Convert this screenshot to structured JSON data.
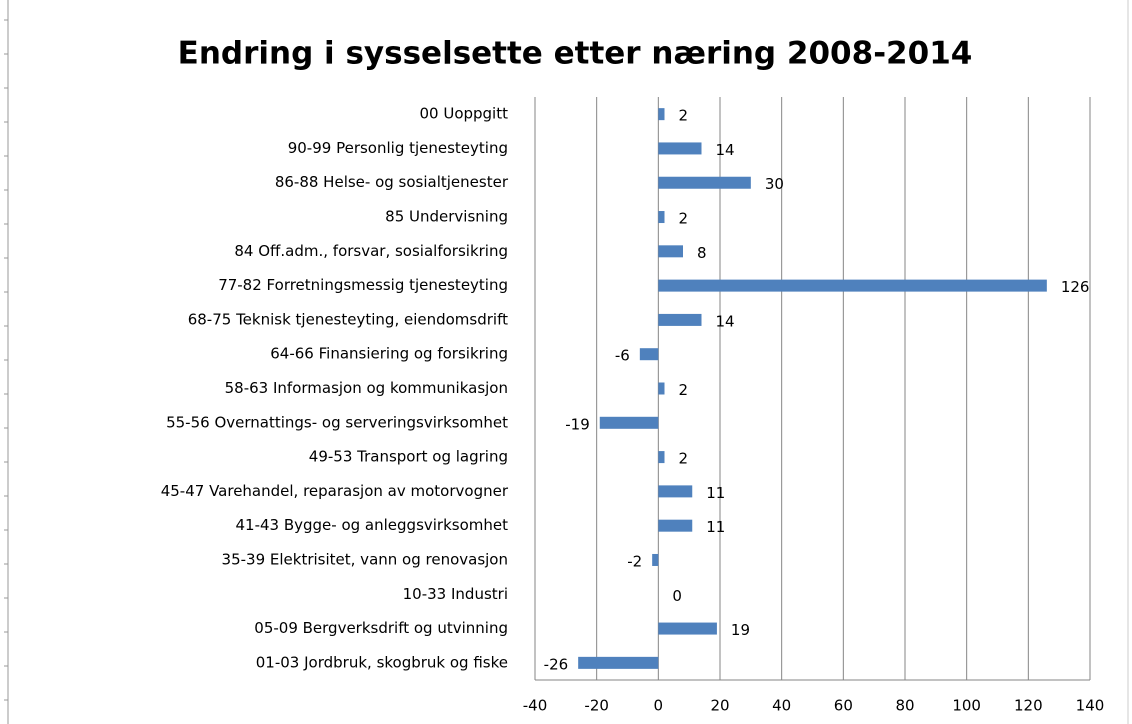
{
  "chart_data": {
    "type": "bar",
    "orientation": "horizontal",
    "title": "Endring i sysselsette etter næring 2008-2014",
    "categories": [
      "00 Uoppgitt",
      "90-99 Personlig tjenesteyting",
      "86-88 Helse- og sosialtjenester",
      "85 Undervisning",
      "84 Off.adm., forsvar, sosialforsikring",
      "77-82 Forretningsmessig tjenesteyting",
      "68-75 Teknisk tjenesteyting, eiendomsdrift",
      "64-66 Finansiering og forsikring",
      "58-63 Informasjon og kommunikasjon",
      "55-56 Overnattings- og serveringsvirksomhet",
      "49-53 Transport og lagring",
      "45-47 Varehandel, reparasjon av motorvogner",
      "41-43 Bygge- og anleggsvirksomhet",
      "35-39 Elektrisitet, vann og renovasjon",
      "10-33 Industri",
      "05-09 Bergverksdrift og utvinning",
      "01-03 Jordbruk, skogbruk og fiske"
    ],
    "values": [
      2,
      14,
      30,
      2,
      8,
      126,
      14,
      -6,
      2,
      -19,
      2,
      11,
      11,
      -2,
      0,
      19,
      -26
    ],
    "color": "#4f81bd",
    "xlim": [
      -40,
      140
    ],
    "xticks": [
      -40,
      -20,
      0,
      20,
      40,
      60,
      80,
      100,
      120,
      140
    ],
    "grid": true
  }
}
